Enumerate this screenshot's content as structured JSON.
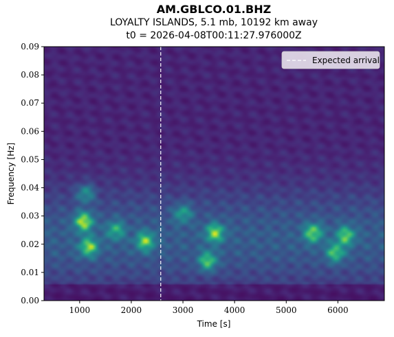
{
  "title": {
    "line1": "AM.GBLCO.01.BHZ",
    "line2": "LOYALTY ISLANDS, 5.1 mb, 10192 km away",
    "line3": "t0 = 2026-04-08T00:11:27.976000Z"
  },
  "chart_data": {
    "type": "heatmap",
    "title": "AM.GBLCO.01.BHZ",
    "xlabel": "Time [s]",
    "ylabel": "Frequency [Hz]",
    "xlim": [
      310,
      6900
    ],
    "ylim": [
      0.0,
      0.09
    ],
    "xticks": [
      1000,
      2000,
      3000,
      4000,
      5000,
      6000
    ],
    "yticks": [
      0.0,
      0.01,
      0.02,
      0.03,
      0.04,
      0.05,
      0.06,
      0.07,
      0.08,
      0.09
    ],
    "xtick_labels": [
      "1000",
      "2000",
      "3000",
      "4000",
      "5000",
      "6000"
    ],
    "ytick_labels": [
      "0.00",
      "0.01",
      "0.02",
      "0.03",
      "0.04",
      "0.05",
      "0.06",
      "0.07",
      "0.08",
      "0.09"
    ],
    "colormap": "viridis",
    "vline": {
      "x": 2570,
      "label": "Expected arrival",
      "style": "dashed",
      "color": "#ffffff"
    },
    "legend": {
      "placement": "top-right",
      "entries": [
        "Expected arrival"
      ]
    },
    "hotspots": [
      {
        "t": 1080,
        "f": 0.028,
        "level": 1.0
      },
      {
        "t": 1180,
        "f": 0.019,
        "level": 0.85
      },
      {
        "t": 1120,
        "f": 0.038,
        "level": 0.5
      },
      {
        "t": 2270,
        "f": 0.021,
        "level": 0.8
      },
      {
        "t": 1700,
        "f": 0.025,
        "level": 0.55
      },
      {
        "t": 3620,
        "f": 0.024,
        "level": 0.85
      },
      {
        "t": 3480,
        "f": 0.014,
        "level": 0.75
      },
      {
        "t": 5520,
        "f": 0.024,
        "level": 0.8
      },
      {
        "t": 6150,
        "f": 0.023,
        "level": 0.75
      },
      {
        "t": 5950,
        "f": 0.017,
        "level": 0.7
      },
      {
        "t": 3000,
        "f": 0.031,
        "level": 0.5
      }
    ],
    "grid": false
  }
}
